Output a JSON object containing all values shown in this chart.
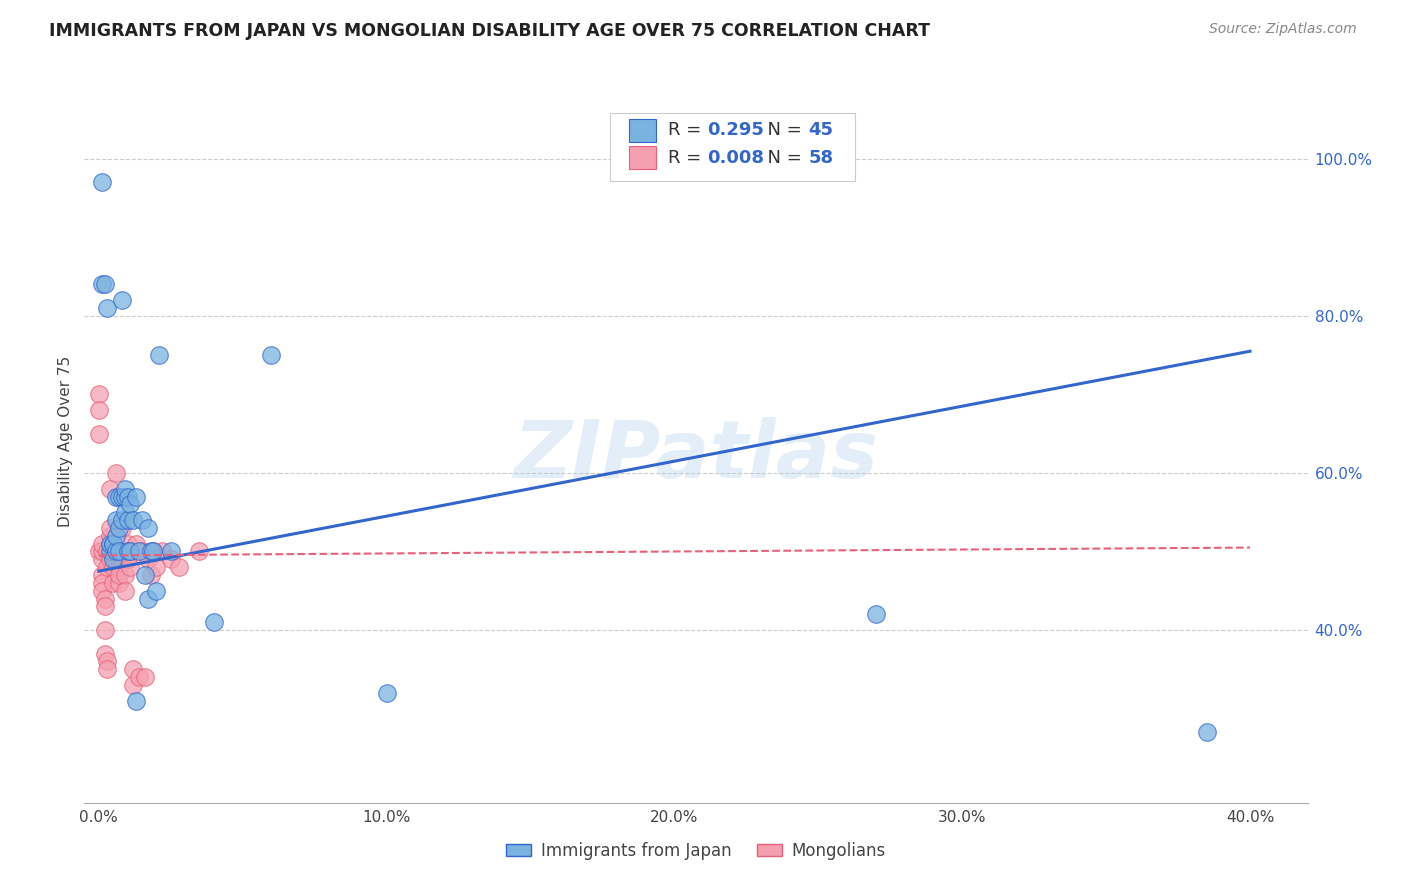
{
  "title": "IMMIGRANTS FROM JAPAN VS MONGOLIAN DISABILITY AGE OVER 75 CORRELATION CHART",
  "source": "Source: ZipAtlas.com",
  "xlabel_ticks": [
    "0.0%",
    "10.0%",
    "20.0%",
    "30.0%",
    "40.0%"
  ],
  "xlabel_tick_vals": [
    0.0,
    0.1,
    0.2,
    0.3,
    0.4
  ],
  "ylabel": "Disability Age Over 75",
  "ylabel_ticks": [
    "40.0%",
    "60.0%",
    "80.0%",
    "100.0%"
  ],
  "ylabel_tick_vals": [
    0.4,
    0.6,
    0.8,
    1.0
  ],
  "xlim": [
    -0.005,
    0.42
  ],
  "ylim": [
    0.18,
    1.1
  ],
  "blue_color": "#7ab3e0",
  "pink_color": "#f4a0b0",
  "blue_line_color": "#3366cc",
  "pink_line_color": "#e8607a",
  "R_blue": 0.295,
  "N_blue": 45,
  "R_pink": 0.008,
  "N_pink": 58,
  "legend_label_blue": "Immigrants from Japan",
  "legend_label_pink": "Mongolians",
  "watermark": "ZIPatlas",
  "blue_line_x0": 0.0,
  "blue_line_y0": 0.475,
  "blue_line_x1": 0.4,
  "blue_line_y1": 0.755,
  "pink_line_x0": 0.0,
  "pink_line_y0": 0.495,
  "pink_line_x1": 0.4,
  "pink_line_y1": 0.505,
  "japan_x": [
    0.001,
    0.001,
    0.002,
    0.003,
    0.004,
    0.004,
    0.005,
    0.005,
    0.005,
    0.006,
    0.006,
    0.006,
    0.006,
    0.007,
    0.007,
    0.007,
    0.008,
    0.008,
    0.008,
    0.009,
    0.009,
    0.009,
    0.01,
    0.01,
    0.01,
    0.011,
    0.011,
    0.012,
    0.013,
    0.013,
    0.014,
    0.015,
    0.016,
    0.017,
    0.017,
    0.018,
    0.019,
    0.02,
    0.021,
    0.025,
    0.04,
    0.06,
    0.1,
    0.27,
    0.385
  ],
  "japan_y": [
    0.84,
    0.97,
    0.84,
    0.81,
    0.5,
    0.51,
    0.49,
    0.51,
    0.51,
    0.5,
    0.52,
    0.54,
    0.57,
    0.5,
    0.53,
    0.57,
    0.54,
    0.57,
    0.82,
    0.57,
    0.58,
    0.55,
    0.5,
    0.54,
    0.57,
    0.5,
    0.56,
    0.54,
    0.31,
    0.57,
    0.5,
    0.54,
    0.47,
    0.44,
    0.53,
    0.5,
    0.5,
    0.45,
    0.75,
    0.5,
    0.41,
    0.75,
    0.32,
    0.42,
    0.27
  ],
  "mongolia_x": [
    0.0,
    0.0,
    0.0,
    0.0,
    0.001,
    0.001,
    0.001,
    0.001,
    0.001,
    0.001,
    0.002,
    0.002,
    0.002,
    0.002,
    0.003,
    0.003,
    0.003,
    0.003,
    0.004,
    0.004,
    0.004,
    0.004,
    0.004,
    0.005,
    0.005,
    0.005,
    0.005,
    0.006,
    0.006,
    0.006,
    0.007,
    0.007,
    0.007,
    0.007,
    0.008,
    0.008,
    0.008,
    0.009,
    0.009,
    0.01,
    0.01,
    0.01,
    0.011,
    0.011,
    0.012,
    0.012,
    0.013,
    0.014,
    0.015,
    0.016,
    0.017,
    0.018,
    0.019,
    0.02,
    0.022,
    0.025,
    0.028,
    0.035
  ],
  "mongolia_y": [
    0.7,
    0.68,
    0.65,
    0.5,
    0.49,
    0.5,
    0.51,
    0.47,
    0.46,
    0.45,
    0.44,
    0.43,
    0.4,
    0.37,
    0.36,
    0.35,
    0.48,
    0.5,
    0.51,
    0.52,
    0.58,
    0.53,
    0.49,
    0.51,
    0.5,
    0.48,
    0.46,
    0.49,
    0.5,
    0.6,
    0.48,
    0.46,
    0.47,
    0.49,
    0.5,
    0.53,
    0.49,
    0.47,
    0.45,
    0.5,
    0.51,
    0.49,
    0.48,
    0.5,
    0.35,
    0.33,
    0.51,
    0.34,
    0.5,
    0.34,
    0.49,
    0.47,
    0.5,
    0.48,
    0.5,
    0.49,
    0.48,
    0.5
  ]
}
